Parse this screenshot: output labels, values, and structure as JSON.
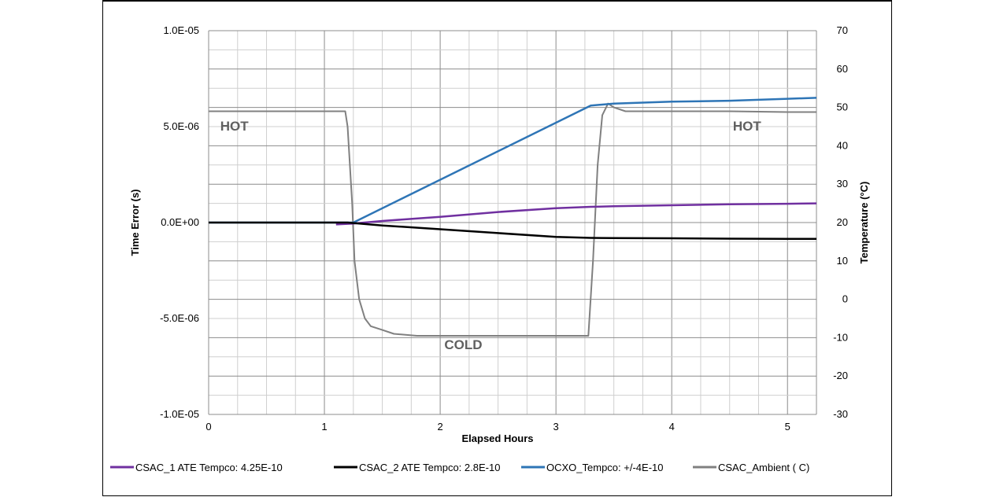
{
  "chart_data": {
    "type": "line",
    "xlabel": "Elapsed Hours",
    "ylabel": "Time Error (s)",
    "y2label": "Temperature (°C)",
    "xlim": [
      0,
      5.25
    ],
    "ylim": [
      -1e-05,
      1e-05
    ],
    "y2lim": [
      -30,
      70
    ],
    "x_ticks": [
      "0",
      "1",
      "2",
      "3",
      "4",
      "5"
    ],
    "y_ticks": [
      "1.0E-05",
      "5.0E-06",
      "0.0E+00",
      "-5.0E-06",
      "-1.0E-05"
    ],
    "y2_ticks": [
      "70",
      "60",
      "50",
      "40",
      "30",
      "20",
      "10",
      "0",
      "-10",
      "-20",
      "-30"
    ],
    "grid": true,
    "legend_position": "bottom",
    "annotations": [
      "HOT",
      "HOT",
      "COLD"
    ],
    "series": [
      {
        "name": "CSAC_1 ATE Tempco: 4.25E-10",
        "color": "#7030a0",
        "axis": "left",
        "x": [
          1.1,
          1.25,
          1.5,
          2.0,
          2.5,
          3.0,
          3.3,
          3.5,
          4.0,
          4.5,
          5.0,
          5.25
        ],
        "y": [
          -1e-07,
          -5e-08,
          8e-08,
          3e-07,
          5.5e-07,
          7.5e-07,
          8.2e-07,
          8.5e-07,
          9e-07,
          9.5e-07,
          9.8e-07,
          1e-06
        ]
      },
      {
        "name": "CSAC_2 ATE Tempco: 2.8E-10",
        "color": "#000000",
        "axis": "left",
        "x": [
          0,
          1.2,
          1.5,
          2.0,
          2.5,
          3.0,
          3.3,
          3.5,
          4.0,
          4.5,
          5.0,
          5.25
        ],
        "y": [
          0,
          0,
          -1.5e-07,
          -3.5e-07,
          -5.5e-07,
          -7.5e-07,
          -8e-07,
          -8.1e-07,
          -8.2e-07,
          -8.4e-07,
          -8.5e-07,
          -8.5e-07
        ]
      },
      {
        "name": "OCXO_Tempco: +/-4E-10",
        "color": "#2e75b6",
        "axis": "left",
        "x": [
          0,
          1.25,
          3.3,
          3.5,
          4.0,
          4.5,
          5.0,
          5.25
        ],
        "y": [
          0,
          0,
          6.1e-06,
          6.2e-06,
          6.3e-06,
          6.35e-06,
          6.45e-06,
          6.5e-06
        ]
      },
      {
        "name": "CSAC_Ambient ( C)",
        "color": "#808080",
        "axis": "right",
        "x": [
          0,
          0.5,
          1.0,
          1.18,
          1.2,
          1.24,
          1.26,
          1.3,
          1.35,
          1.4,
          1.5,
          1.6,
          1.8,
          2.0,
          2.5,
          3.0,
          3.28,
          3.32,
          3.36,
          3.4,
          3.45,
          3.5,
          3.6,
          4.0,
          4.5,
          5.0,
          5.25
        ],
        "y": [
          49,
          49,
          49,
          49,
          45,
          25,
          10,
          0,
          -5,
          -7,
          -8,
          -9,
          -9.5,
          -9.5,
          -9.5,
          -9.5,
          -9.5,
          10,
          35,
          48,
          51,
          50,
          49,
          49,
          49,
          48.8,
          48.8
        ]
      }
    ]
  }
}
